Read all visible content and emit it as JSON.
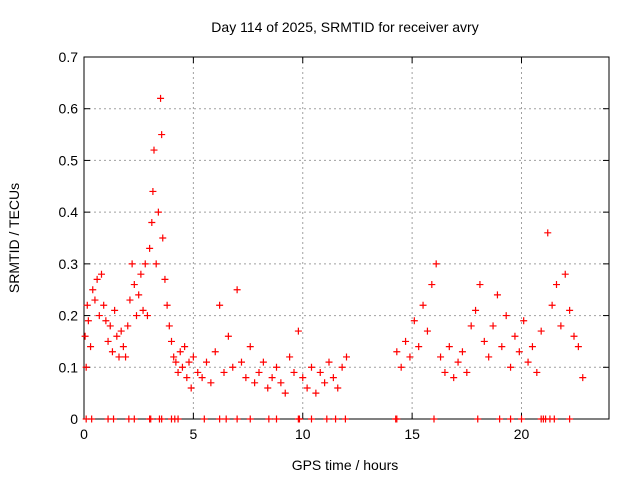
{
  "chart_data": {
    "type": "scatter",
    "title": "Day 114 of 2025, SRMTID for receiver avry",
    "xlabel": "GPS time / hours",
    "ylabel": "SRMTID / TECUs",
    "xlim": [
      0,
      24
    ],
    "ylim": [
      0,
      0.7
    ],
    "x_ticks": [
      0,
      5,
      10,
      15,
      20
    ],
    "y_ticks": [
      0,
      0.1,
      0.2,
      0.3,
      0.4,
      0.5,
      0.6,
      0.7
    ],
    "x_tick_labels": [
      "0",
      "5",
      "10",
      "15",
      "20"
    ],
    "y_tick_labels": [
      "0",
      "0.1",
      "0.2",
      "0.3",
      "0.4",
      "0.5",
      "0.6",
      "0.7"
    ],
    "grid": true,
    "marker": "+",
    "marker_color": "#ff0000",
    "series": [
      {
        "name": "SRMTID",
        "x": [
          0.05,
          0.1,
          0.15,
          0.2,
          0.3,
          0.4,
          0.5,
          0.6,
          0.7,
          0.8,
          0.9,
          1.0,
          1.1,
          1.2,
          1.3,
          1.4,
          1.5,
          1.6,
          1.7,
          1.8,
          1.9,
          2.0,
          2.1,
          2.2,
          2.3,
          2.4,
          2.5,
          2.6,
          2.7,
          2.8,
          2.9,
          3.0,
          3.1,
          3.15,
          3.2,
          3.3,
          3.4,
          3.5,
          3.55,
          3.6,
          3.7,
          3.8,
          3.9,
          4.0,
          4.1,
          4.2,
          4.3,
          4.4,
          4.5,
          4.6,
          4.7,
          4.8,
          4.9,
          5.0,
          5.2,
          5.4,
          5.6,
          5.8,
          6.0,
          6.2,
          6.4,
          6.6,
          6.8,
          7.0,
          7.2,
          7.4,
          7.6,
          7.8,
          8.0,
          8.2,
          8.4,
          8.6,
          8.8,
          9.0,
          9.2,
          9.4,
          9.6,
          9.8,
          10.0,
          10.2,
          10.4,
          10.6,
          10.8,
          11.0,
          11.2,
          11.4,
          11.6,
          11.8,
          12.0,
          14.3,
          14.5,
          14.7,
          14.9,
          15.1,
          15.3,
          15.5,
          15.7,
          15.9,
          16.1,
          16.3,
          16.5,
          16.7,
          16.9,
          17.1,
          17.3,
          17.5,
          17.7,
          17.9,
          18.1,
          18.3,
          18.5,
          18.7,
          18.9,
          19.1,
          19.3,
          19.5,
          19.7,
          19.9,
          20.1,
          20.3,
          20.5,
          20.7,
          20.9,
          21.2,
          21.4,
          21.6,
          21.8,
          22.0,
          22.2,
          22.4,
          22.6,
          22.8
        ],
        "y": [
          0.16,
          0.1,
          0.22,
          0.19,
          0.14,
          0.25,
          0.23,
          0.27,
          0.2,
          0.28,
          0.22,
          0.19,
          0.15,
          0.18,
          0.13,
          0.21,
          0.16,
          0.12,
          0.17,
          0.14,
          0.12,
          0.18,
          0.23,
          0.3,
          0.26,
          0.2,
          0.24,
          0.28,
          0.21,
          0.3,
          0.2,
          0.33,
          0.38,
          0.44,
          0.52,
          0.3,
          0.4,
          0.62,
          0.55,
          0.35,
          0.27,
          0.22,
          0.18,
          0.15,
          0.12,
          0.11,
          0.09,
          0.13,
          0.1,
          0.14,
          0.08,
          0.11,
          0.06,
          0.12,
          0.09,
          0.08,
          0.11,
          0.07,
          0.13,
          0.22,
          0.09,
          0.16,
          0.1,
          0.25,
          0.11,
          0.08,
          0.14,
          0.07,
          0.09,
          0.11,
          0.06,
          0.08,
          0.1,
          0.07,
          0.05,
          0.12,
          0.09,
          0.17,
          0.08,
          0.06,
          0.1,
          0.05,
          0.09,
          0.07,
          0.11,
          0.08,
          0.06,
          0.1,
          0.12,
          0.13,
          0.1,
          0.15,
          0.12,
          0.19,
          0.14,
          0.22,
          0.17,
          0.26,
          0.3,
          0.12,
          0.09,
          0.14,
          0.08,
          0.11,
          0.13,
          0.09,
          0.18,
          0.21,
          0.26,
          0.15,
          0.12,
          0.18,
          0.24,
          0.14,
          0.2,
          0.1,
          0.16,
          0.13,
          0.19,
          0.11,
          0.14,
          0.09,
          0.17,
          0.36,
          0.22,
          0.26,
          0.18,
          0.28,
          0.21,
          0.16,
          0.14,
          0.08
        ]
      }
    ],
    "baseline_markers_x": [
      0.1,
      0.35,
      1.1,
      1.35,
      2.05,
      2.3,
      3.0,
      3.05,
      3.45,
      3.55,
      4.0,
      4.15,
      4.3,
      5.5,
      6.2,
      6.5,
      7.0,
      7.6,
      8.45,
      8.8,
      9.8,
      9.85,
      10.4,
      11.1,
      11.5,
      11.95,
      14.25,
      14.3,
      16.0,
      18.0,
      19.0,
      19.5,
      20.0,
      20.9,
      21.0,
      21.1,
      21.3,
      21.5,
      22.2
    ]
  }
}
